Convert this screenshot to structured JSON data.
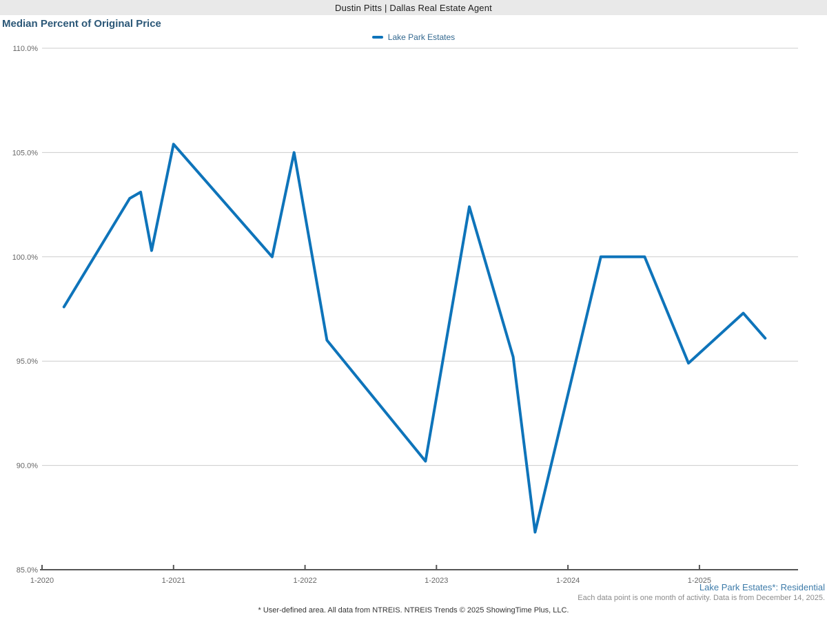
{
  "header": {
    "title": "Dustin Pitts | Dallas Real Estate Agent"
  },
  "chart": {
    "title": "Median Percent of Original Price",
    "legend_label": "Lake Park Estates"
  },
  "footer": {
    "series_note": "Lake Park Estates*: Residential",
    "data_note": "Each data point is one month of activity. Data is from December 14, 2025.",
    "disclaimer": "* User-defined area. All data from NTREIS. NTREIS Trends © 2025 ShowingTime Plus, LLC."
  },
  "colors": {
    "line": "#0e74ba",
    "title_text": "#2b5777",
    "legend_text": "#33688f",
    "series_note_text": "#3d7ba9",
    "tick_text": "#666666",
    "grid": "#cccccc",
    "axis": "#555555",
    "header_bg": "#e9e9e9",
    "header_text": "#1c1c1c",
    "note_gray": "#8c8c8c",
    "disclaimer_text": "#333333"
  },
  "chart_data": {
    "type": "line",
    "title": "Median Percent of Original Price",
    "xlabel": "",
    "ylabel": "",
    "grid": "horizontal",
    "legend_position": "top-center",
    "ylim": [
      85,
      110
    ],
    "y_ticks": [
      110,
      105,
      100,
      95,
      90,
      85
    ],
    "y_tick_format": "percent-1dp",
    "x_ticks": [
      "1-2020",
      "1-2021",
      "1-2022",
      "1-2023",
      "1-2024",
      "1-2025"
    ],
    "x_span_months": [
      "2020-01",
      "2025-10"
    ],
    "series": [
      {
        "name": "Lake Park Estates",
        "points": [
          [
            "2020-03",
            97.6
          ],
          [
            "2020-09",
            102.8
          ],
          [
            "2020-10",
            103.1
          ],
          [
            "2020-11",
            100.3
          ],
          [
            "2021-01",
            105.4
          ],
          [
            "2021-10",
            100.0
          ],
          [
            "2021-12",
            105.0
          ],
          [
            "2022-03",
            96.0
          ],
          [
            "2022-12",
            90.2
          ],
          [
            "2023-04",
            102.4
          ],
          [
            "2023-08",
            95.2
          ],
          [
            "2023-10",
            86.8
          ],
          [
            "2024-04",
            100.0
          ],
          [
            "2024-08",
            100.0
          ],
          [
            "2024-12",
            94.9
          ],
          [
            "2025-05",
            97.3
          ],
          [
            "2025-07",
            96.1
          ]
        ]
      }
    ]
  }
}
